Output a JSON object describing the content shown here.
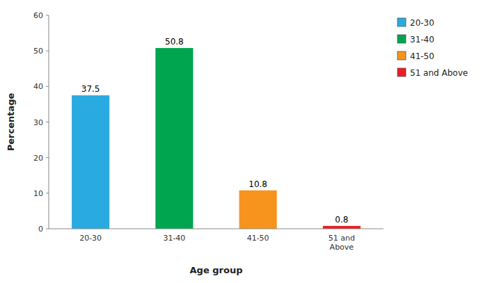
{
  "chart_data": {
    "type": "bar",
    "categories": [
      "20-30",
      "31-40",
      "41-50",
      "51 and\nAbove"
    ],
    "values": [
      37.5,
      50.8,
      10.8,
      0.8
    ],
    "colors": [
      "#29ABE2",
      "#00A550",
      "#F7941D",
      "#ED1C24"
    ],
    "legend_labels": [
      "20-30",
      "31-40",
      "41-50",
      "51 and Above"
    ],
    "xlabel": "Age group",
    "ylabel": "Percentage",
    "ylim": [
      0,
      60
    ],
    "yticks": [
      0,
      10,
      20,
      30,
      40,
      50,
      60
    ],
    "grid": false,
    "data_labels": true,
    "legend": "right"
  }
}
